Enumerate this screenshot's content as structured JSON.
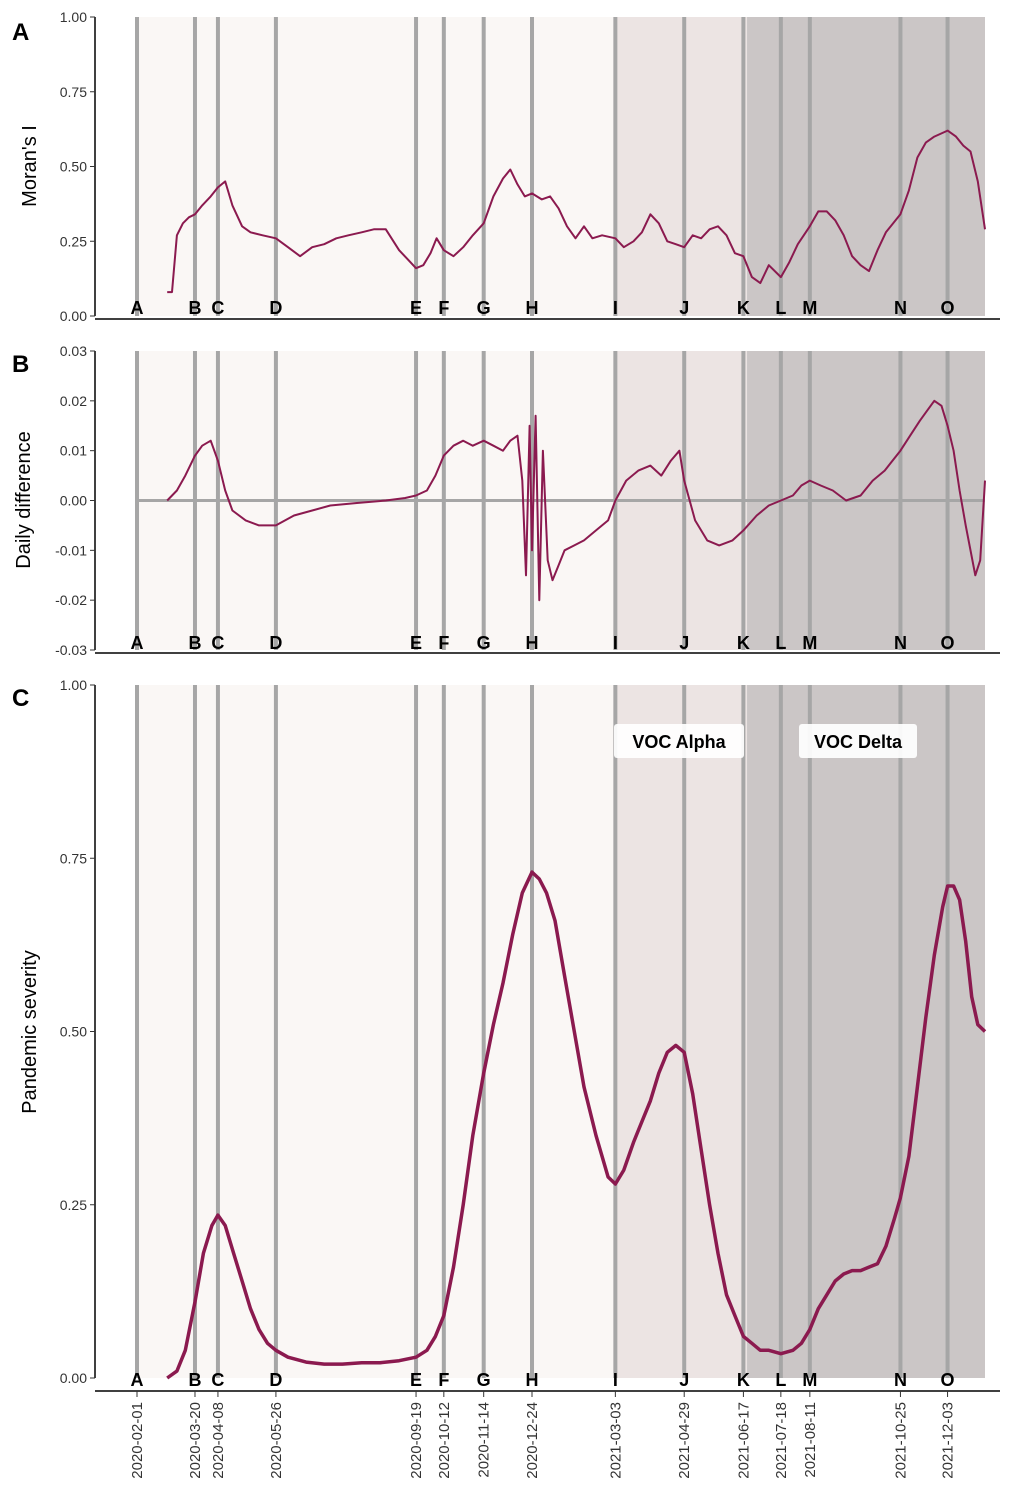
{
  "figure": {
    "panels": [
      {
        "letter": "A",
        "ylabel": "Moran's I"
      },
      {
        "letter": "B",
        "ylabel": "Daily difference"
      },
      {
        "letter": "C",
        "ylabel": "Pandemic severity"
      }
    ]
  },
  "chart_data": [
    {
      "type": "line",
      "panel": "A",
      "ylabel": "Moran's I",
      "ylim": [
        0,
        1
      ],
      "yticks": [
        "0.00",
        "0.25",
        "0.50",
        "0.75",
        "1.00"
      ],
      "ytick_values": [
        0,
        0.25,
        0.5,
        0.75,
        1
      ],
      "color": "#8b1a4f",
      "series": [
        {
          "x": [
            "2020-02-26",
            "2020-03-01",
            "2020-03-05",
            "2020-03-10",
            "2020-03-15",
            "2020-03-20",
            "2020-03-26",
            "2020-04-02",
            "2020-04-08",
            "2020-04-14",
            "2020-04-20",
            "2020-04-28",
            "2020-05-05",
            "2020-05-15",
            "2020-05-26",
            "2020-06-05",
            "2020-06-15",
            "2020-06-25",
            "2020-07-05",
            "2020-07-15",
            "2020-07-25",
            "2020-08-05",
            "2020-08-15",
            "2020-08-25",
            "2020-09-05",
            "2020-09-12",
            "2020-09-19",
            "2020-09-25",
            "2020-10-01",
            "2020-10-06",
            "2020-10-12",
            "2020-10-20",
            "2020-10-28",
            "2020-11-05",
            "2020-11-14",
            "2020-11-22",
            "2020-11-30",
            "2020-12-06",
            "2020-12-12",
            "2020-12-18",
            "2020-12-24",
            "2021-01-01",
            "2021-01-08",
            "2021-01-15",
            "2021-01-22",
            "2021-01-29",
            "2021-02-05",
            "2021-02-12",
            "2021-02-20",
            "2021-03-03",
            "2021-03-10",
            "2021-03-18",
            "2021-03-25",
            "2021-04-01",
            "2021-04-08",
            "2021-04-15",
            "2021-04-22",
            "2021-04-29",
            "2021-05-06",
            "2021-05-13",
            "2021-05-20",
            "2021-05-27",
            "2021-06-03",
            "2021-06-10",
            "2021-06-17",
            "2021-06-24",
            "2021-07-01",
            "2021-07-08",
            "2021-07-18",
            "2021-07-25",
            "2021-08-01",
            "2021-08-11",
            "2021-08-18",
            "2021-08-25",
            "2021-09-01",
            "2021-09-08",
            "2021-09-15",
            "2021-09-22",
            "2021-09-29",
            "2021-10-06",
            "2021-10-13",
            "2021-10-25",
            "2021-11-01",
            "2021-11-08",
            "2021-11-15",
            "2021-11-22",
            "2021-12-03",
            "2021-12-10",
            "2021-12-16",
            "2021-12-22",
            "2021-12-28",
            "2022-01-03"
          ],
          "y": [
            0.08,
            0.08,
            0.27,
            0.31,
            0.33,
            0.34,
            0.37,
            0.4,
            0.43,
            0.45,
            0.37,
            0.3,
            0.28,
            0.27,
            0.26,
            0.23,
            0.2,
            0.23,
            0.24,
            0.26,
            0.27,
            0.28,
            0.29,
            0.29,
            0.22,
            0.19,
            0.16,
            0.17,
            0.21,
            0.26,
            0.22,
            0.2,
            0.23,
            0.27,
            0.31,
            0.4,
            0.46,
            0.49,
            0.44,
            0.4,
            0.41,
            0.39,
            0.4,
            0.36,
            0.3,
            0.26,
            0.3,
            0.26,
            0.27,
            0.26,
            0.23,
            0.25,
            0.28,
            0.34,
            0.31,
            0.25,
            0.24,
            0.23,
            0.27,
            0.26,
            0.29,
            0.3,
            0.27,
            0.21,
            0.2,
            0.13,
            0.11,
            0.17,
            0.13,
            0.18,
            0.24,
            0.3,
            0.35,
            0.35,
            0.32,
            0.27,
            0.2,
            0.17,
            0.15,
            0.22,
            0.28,
            0.34,
            0.42,
            0.53,
            0.58,
            0.6,
            0.62,
            0.6,
            0.57,
            0.55,
            0.45,
            0.29
          ]
        }
      ]
    },
    {
      "type": "line",
      "panel": "B",
      "ylabel": "Daily difference",
      "ylim": [
        -0.03,
        0.03
      ],
      "yticks": [
        "-0.03",
        "-0.02",
        "-0.01",
        "0.00",
        "0.01",
        "0.02",
        "0.03"
      ],
      "ytick_values": [
        -0.03,
        -0.02,
        -0.01,
        0,
        0.01,
        0.02,
        0.03
      ],
      "zero_line": 0,
      "color": "#8b1a4f",
      "series": [
        {
          "x": [
            "2020-02-26",
            "2020-03-05",
            "2020-03-12",
            "2020-03-20",
            "2020-03-26",
            "2020-04-02",
            "2020-04-08",
            "2020-04-14",
            "2020-04-20",
            "2020-05-01",
            "2020-05-12",
            "2020-05-26",
            "2020-06-10",
            "2020-06-25",
            "2020-07-10",
            "2020-08-01",
            "2020-08-25",
            "2020-09-10",
            "2020-09-19",
            "2020-09-28",
            "2020-10-05",
            "2020-10-12",
            "2020-10-20",
            "2020-10-28",
            "2020-11-05",
            "2020-11-14",
            "2020-11-22",
            "2020-11-30",
            "2020-12-06",
            "2020-12-12",
            "2020-12-16",
            "2020-12-19",
            "2020-12-22",
            "2020-12-24",
            "2020-12-27",
            "2020-12-30",
            "2021-01-02",
            "2021-01-06",
            "2021-01-10",
            "2021-01-15",
            "2021-01-20",
            "2021-01-28",
            "2021-02-05",
            "2021-02-15",
            "2021-02-25",
            "2021-03-03",
            "2021-03-12",
            "2021-03-22",
            "2021-04-01",
            "2021-04-10",
            "2021-04-18",
            "2021-04-25",
            "2021-04-29",
            "2021-05-08",
            "2021-05-18",
            "2021-05-28",
            "2021-06-08",
            "2021-06-17",
            "2021-06-28",
            "2021-07-08",
            "2021-07-18",
            "2021-07-28",
            "2021-08-04",
            "2021-08-11",
            "2021-08-20",
            "2021-08-30",
            "2021-09-10",
            "2021-09-22",
            "2021-10-02",
            "2021-10-12",
            "2021-10-25",
            "2021-11-02",
            "2021-11-10",
            "2021-11-16",
            "2021-11-22",
            "2021-11-28",
            "2021-12-03",
            "2021-12-08",
            "2021-12-13",
            "2021-12-18",
            "2021-12-22",
            "2021-12-26",
            "2021-12-30",
            "2022-01-03"
          ],
          "y": [
            0.0,
            0.002,
            0.005,
            0.009,
            0.011,
            0.012,
            0.008,
            0.002,
            -0.002,
            -0.004,
            -0.005,
            -0.005,
            -0.003,
            -0.002,
            -0.001,
            -0.0005,
            0.0,
            0.0005,
            0.001,
            0.002,
            0.005,
            0.009,
            0.011,
            0.012,
            0.011,
            0.012,
            0.011,
            0.01,
            0.012,
            0.013,
            0.004,
            -0.015,
            0.015,
            -0.01,
            0.017,
            -0.02,
            0.01,
            -0.012,
            -0.016,
            -0.013,
            -0.01,
            -0.009,
            -0.008,
            -0.006,
            -0.004,
            0.0,
            0.004,
            0.006,
            0.007,
            0.005,
            0.008,
            0.01,
            0.004,
            -0.004,
            -0.008,
            -0.009,
            -0.008,
            -0.006,
            -0.003,
            -0.001,
            0.0,
            0.001,
            0.003,
            0.004,
            0.003,
            0.002,
            0.0,
            0.001,
            0.004,
            0.006,
            0.01,
            0.013,
            0.016,
            0.018,
            0.02,
            0.019,
            0.015,
            0.01,
            0.002,
            -0.005,
            -0.01,
            -0.015,
            -0.012,
            0.004
          ]
        }
      ]
    },
    {
      "type": "line",
      "panel": "C",
      "ylabel": "Pandemic severity",
      "ylim": [
        0,
        1
      ],
      "yticks": [
        "0.00",
        "0.25",
        "0.50",
        "0.75",
        "1.00"
      ],
      "ytick_values": [
        0,
        0.25,
        0.5,
        0.75,
        1
      ],
      "color": "#8b1a4f",
      "series": [
        {
          "x": [
            "2020-02-26",
            "2020-03-05",
            "2020-03-12",
            "2020-03-20",
            "2020-03-27",
            "2020-04-03",
            "2020-04-08",
            "2020-04-14",
            "2020-04-21",
            "2020-04-28",
            "2020-05-05",
            "2020-05-12",
            "2020-05-19",
            "2020-05-26",
            "2020-06-05",
            "2020-06-20",
            "2020-07-05",
            "2020-07-20",
            "2020-08-05",
            "2020-08-20",
            "2020-09-05",
            "2020-09-19",
            "2020-09-28",
            "2020-10-05",
            "2020-10-12",
            "2020-10-20",
            "2020-10-28",
            "2020-11-05",
            "2020-11-14",
            "2020-11-22",
            "2020-11-30",
            "2020-12-08",
            "2020-12-16",
            "2020-12-24",
            "2020-12-30",
            "2021-01-05",
            "2021-01-12",
            "2021-01-20",
            "2021-01-28",
            "2021-02-05",
            "2021-02-15",
            "2021-02-25",
            "2021-03-03",
            "2021-03-10",
            "2021-03-18",
            "2021-03-25",
            "2021-04-01",
            "2021-04-08",
            "2021-04-15",
            "2021-04-22",
            "2021-04-29",
            "2021-05-06",
            "2021-05-13",
            "2021-05-20",
            "2021-05-27",
            "2021-06-03",
            "2021-06-10",
            "2021-06-17",
            "2021-06-24",
            "2021-07-01",
            "2021-07-08",
            "2021-07-18",
            "2021-07-28",
            "2021-08-04",
            "2021-08-11",
            "2021-08-18",
            "2021-08-25",
            "2021-09-01",
            "2021-09-08",
            "2021-09-15",
            "2021-09-22",
            "2021-09-29",
            "2021-10-06",
            "2021-10-13",
            "2021-10-20",
            "2021-10-25",
            "2021-11-01",
            "2021-11-08",
            "2021-11-15",
            "2021-11-22",
            "2021-11-29",
            "2021-12-03",
            "2021-12-08",
            "2021-12-13",
            "2021-12-18",
            "2021-12-23",
            "2021-12-28",
            "2022-01-03"
          ],
          "y": [
            0.0,
            0.01,
            0.04,
            0.11,
            0.18,
            0.22,
            0.235,
            0.22,
            0.18,
            0.14,
            0.1,
            0.07,
            0.05,
            0.04,
            0.03,
            0.023,
            0.02,
            0.02,
            0.022,
            0.022,
            0.025,
            0.03,
            0.04,
            0.06,
            0.09,
            0.16,
            0.25,
            0.35,
            0.44,
            0.51,
            0.57,
            0.64,
            0.7,
            0.73,
            0.72,
            0.7,
            0.66,
            0.58,
            0.5,
            0.42,
            0.35,
            0.29,
            0.28,
            0.3,
            0.34,
            0.37,
            0.4,
            0.44,
            0.47,
            0.48,
            0.47,
            0.41,
            0.33,
            0.25,
            0.18,
            0.12,
            0.09,
            0.06,
            0.05,
            0.04,
            0.04,
            0.035,
            0.04,
            0.05,
            0.07,
            0.1,
            0.12,
            0.14,
            0.15,
            0.155,
            0.155,
            0.16,
            0.165,
            0.19,
            0.23,
            0.26,
            0.32,
            0.42,
            0.52,
            0.61,
            0.68,
            0.71,
            0.71,
            0.69,
            0.63,
            0.55,
            0.51,
            0.5
          ]
        }
      ]
    }
  ],
  "events": [
    {
      "label": "A",
      "date": "2020-02-01"
    },
    {
      "label": "B",
      "date": "2020-03-20"
    },
    {
      "label": "C",
      "date": "2020-04-08"
    },
    {
      "label": "D",
      "date": "2020-05-26"
    },
    {
      "label": "E",
      "date": "2020-09-19"
    },
    {
      "label": "F",
      "date": "2020-10-12"
    },
    {
      "label": "G",
      "date": "2020-11-14"
    },
    {
      "label": "H",
      "date": "2020-12-24"
    },
    {
      "label": "I",
      "date": "2021-03-03"
    },
    {
      "label": "J",
      "date": "2021-04-29"
    },
    {
      "label": "K",
      "date": "2021-06-17"
    },
    {
      "label": "L",
      "date": "2021-07-18"
    },
    {
      "label": "M",
      "date": "2021-08-11"
    },
    {
      "label": "N",
      "date": "2021-10-25"
    },
    {
      "label": "O",
      "date": "2021-12-03"
    }
  ],
  "periods": [
    {
      "name": "",
      "start": "2020-02-01",
      "end": "2021-03-03",
      "color": "#faf7f5"
    },
    {
      "name": "VOC Alpha",
      "start": "2021-03-03",
      "end": "2021-06-20",
      "color": "#ece4e3"
    },
    {
      "name": "VOC Delta",
      "start": "2021-06-20",
      "end": "2022-01-03",
      "color": "#cbc6c6"
    }
  ],
  "x_range": [
    "2020-02-01",
    "2022-01-03"
  ],
  "colors": {
    "line": "#8b1a4f",
    "event_line": "#a6a6a6",
    "zero_line": "#a6a6a6",
    "axis": "#000000"
  }
}
